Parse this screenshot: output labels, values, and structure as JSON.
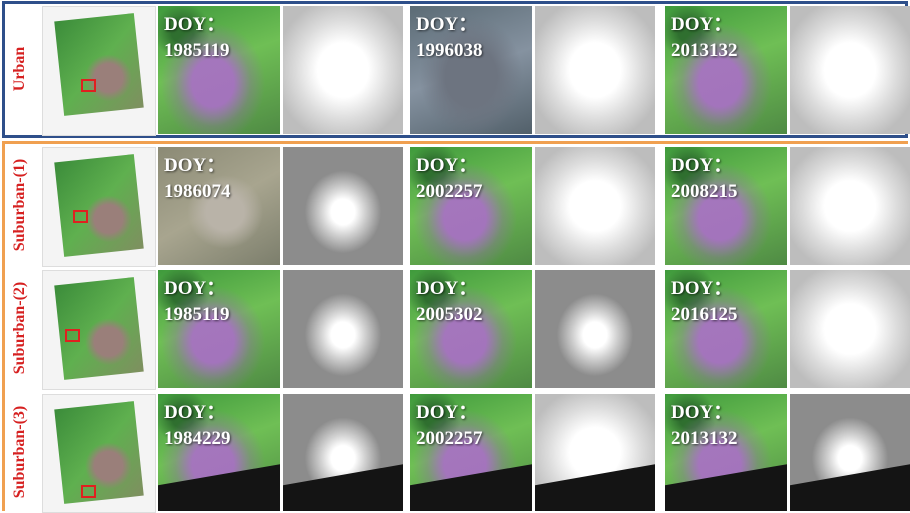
{
  "rows": [
    {
      "label": "Urban",
      "scenes": [
        {
          "prefix": "DOY：",
          "date": "1985119"
        },
        {
          "prefix": "DOY：",
          "date": "1996038"
        },
        {
          "prefix": "DOY：",
          "date": "2013132"
        }
      ]
    },
    {
      "label": "Suburban-(1)",
      "scenes": [
        {
          "prefix": "DOY：",
          "date": "1986074"
        },
        {
          "prefix": "DOY：",
          "date": "2002257"
        },
        {
          "prefix": "DOY：",
          "date": "2008215"
        }
      ]
    },
    {
      "label": "Suburban-(2)",
      "scenes": [
        {
          "prefix": "DOY：",
          "date": "1985119"
        },
        {
          "prefix": "DOY：",
          "date": "2005302"
        },
        {
          "prefix": "DOY：",
          "date": "2016125"
        }
      ]
    },
    {
      "label": "Suburban-(3)",
      "scenes": [
        {
          "prefix": "DOY：",
          "date": "1984229"
        },
        {
          "prefix": "DOY：",
          "date": "2002257"
        },
        {
          "prefix": "DOY：",
          "date": "2013132"
        }
      ]
    }
  ]
}
